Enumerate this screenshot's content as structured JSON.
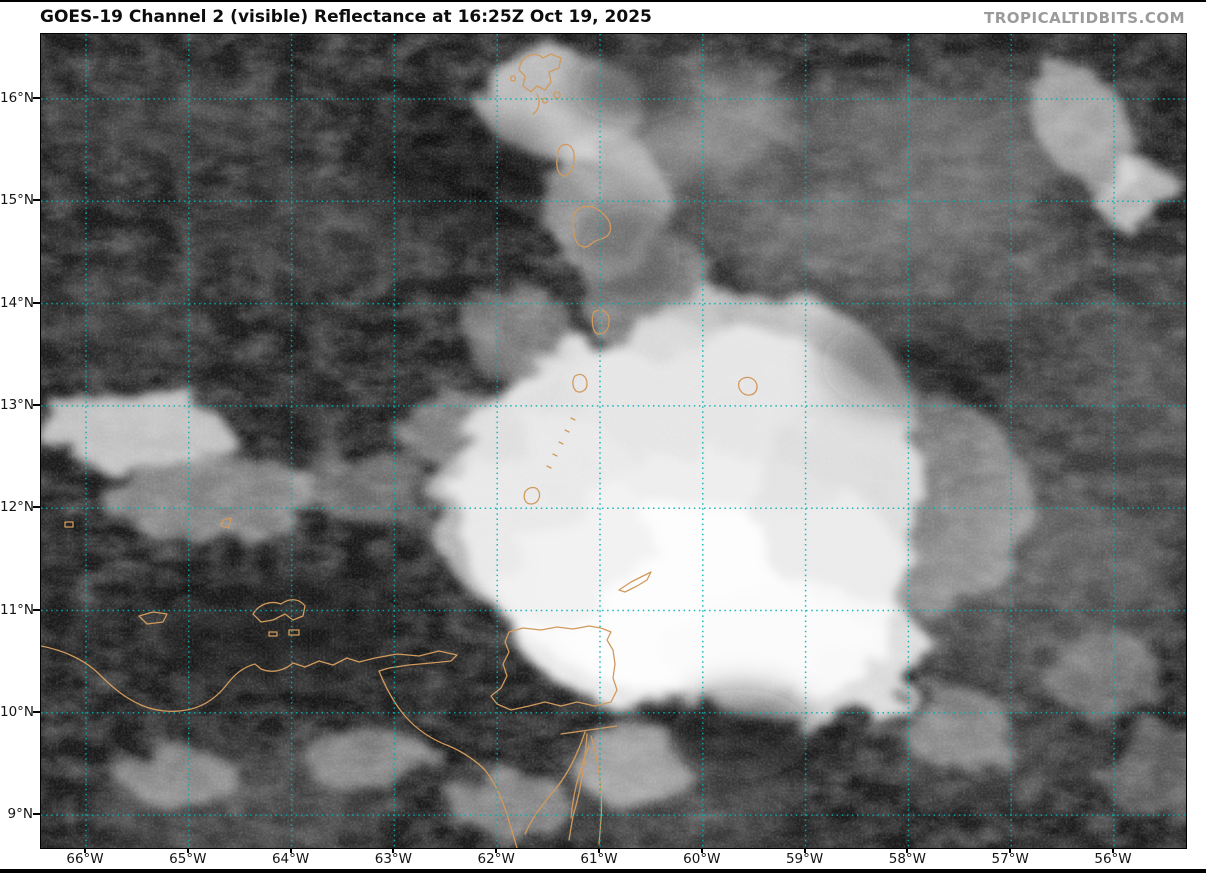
{
  "header": {
    "title": "GOES-19 Channel 2 (visible) Reflectance at 16:25Z Oct 19, 2025",
    "watermark": "TROPICALTIDBITS.COM"
  },
  "map": {
    "colors": {
      "grid": "#00b2b2",
      "coastline": "#d09a5e",
      "ocean": "#1b1b1b"
    },
    "axes": {
      "lat_ticks": [
        "16°N",
        "15°N",
        "14°N",
        "13°N",
        "12°N",
        "11°N",
        "10°N",
        "9°N"
      ],
      "lon_ticks": [
        "66°W",
        "65°W",
        "64°W",
        "63°W",
        "62°W",
        "61°W",
        "60°W",
        "59°W",
        "58°W",
        "57°W",
        "56°W"
      ]
    }
  }
}
